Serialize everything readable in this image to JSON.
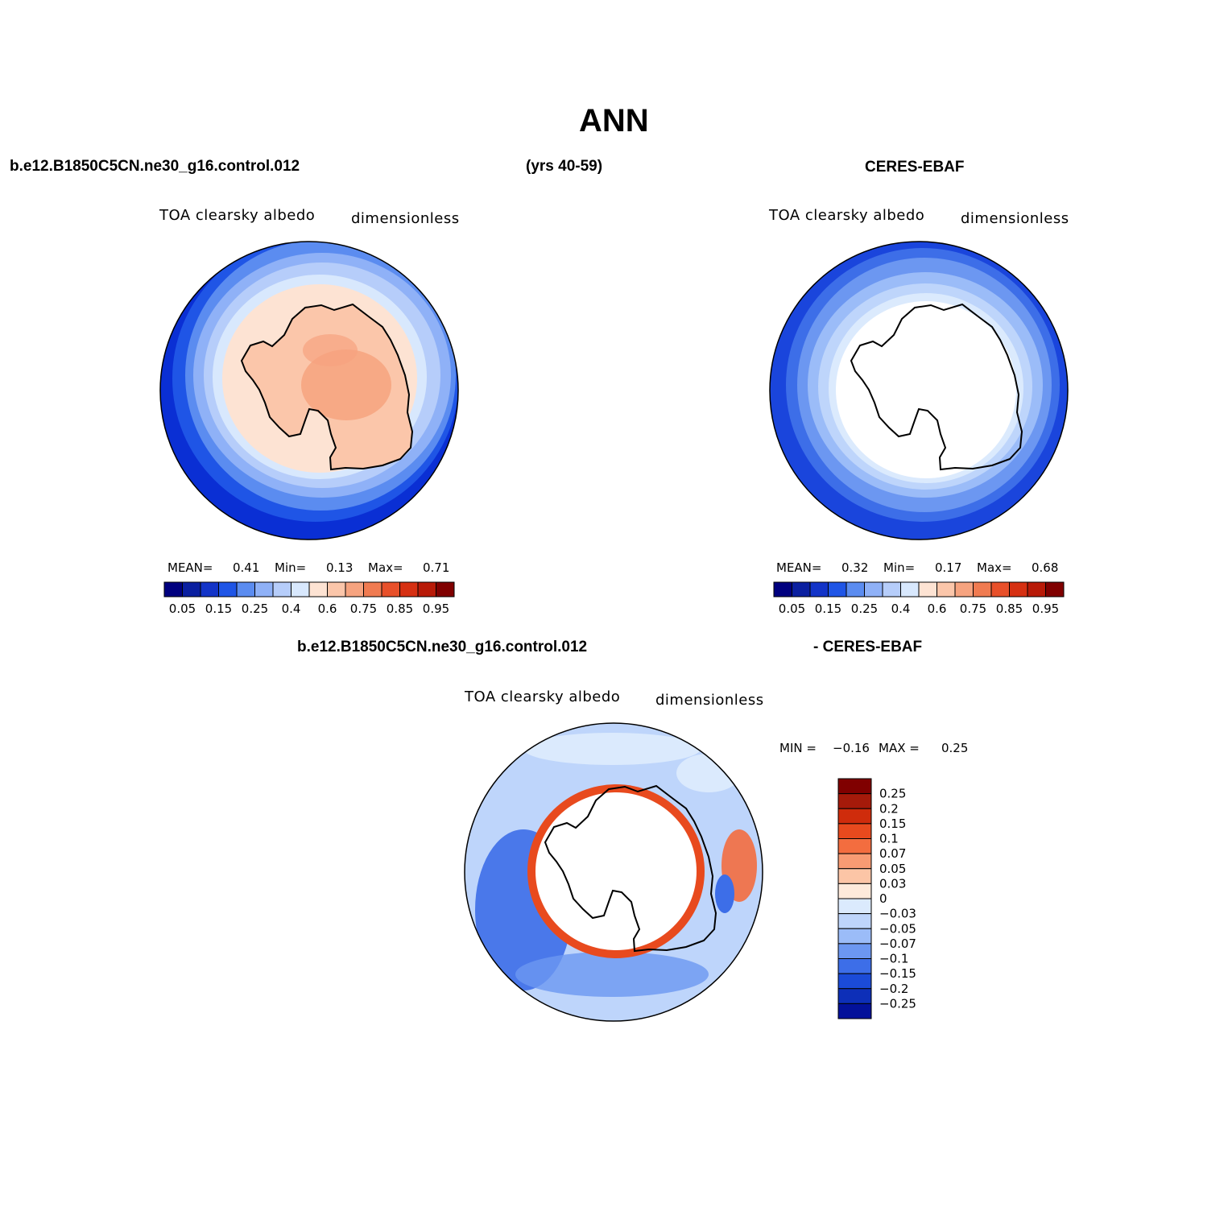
{
  "page": {
    "title": "ANN",
    "case_name": "b.e12.B1850C5CN.ne30_g16.control.012",
    "years": "(yrs 40-59)",
    "obs_name": "CERES-EBAF",
    "diff_case_name": "b.e12.B1850C5CN.ne30_g16.control.012",
    "diff_obs_name": "- CERES-EBAF"
  },
  "panels": {
    "model": {
      "variable": "TOA clearsky albedo",
      "units": "dimensionless",
      "mean_label": "MEAN=",
      "mean": "0.41",
      "min_label": "Min=",
      "min": "0.13",
      "max_label": "Max=",
      "max": "0.71"
    },
    "obs": {
      "variable": "TOA clearsky albedo",
      "units": "dimensionless",
      "mean_label": "MEAN=",
      "mean": "0.32",
      "min_label": "Min=",
      "min": "0.17",
      "max_label": "Max=",
      "max": "0.68"
    },
    "diff": {
      "variable": "TOA clearsky albedo",
      "units": "dimensionless",
      "min_label": "MIN =",
      "min": "−0.16",
      "max_label": "MAX =",
      "max": "0.25"
    }
  },
  "colorbars": {
    "abs": {
      "colors": [
        "#00007f",
        "#0a1fa0",
        "#1334c8",
        "#1f55e6",
        "#5b8cf0",
        "#8fb1f7",
        "#b6cdfa",
        "#d8e8fd",
        "#fde3d3",
        "#fbc6aa",
        "#f6a37f",
        "#f07b51",
        "#e8502a",
        "#d63012",
        "#b81a08",
        "#800000"
      ],
      "tick_labels": [
        "0.05",
        "0.15",
        "0.25",
        "0.4",
        "0.6",
        "0.75",
        "0.85",
        "0.95"
      ]
    },
    "diff": {
      "colors": [
        "#800000",
        "#a51a0a",
        "#cf2c0c",
        "#e84a1e",
        "#f36d3f",
        "#f89b73",
        "#fcc5a6",
        "#feeadb",
        "#dbeafd",
        "#bed5fb",
        "#9bbcf8",
        "#6c97f1",
        "#3d6ee8",
        "#1b4bd8",
        "#0d2fb8",
        "#03119a"
      ],
      "tick_labels": [
        "0.25",
        "0.2",
        "0.15",
        "0.1",
        "0.07",
        "0.05",
        "0.03",
        "0",
        "−0.03",
        "−0.05",
        "−0.07",
        "−0.1",
        "−0.15",
        "−0.2",
        "−0.25"
      ]
    }
  }
}
